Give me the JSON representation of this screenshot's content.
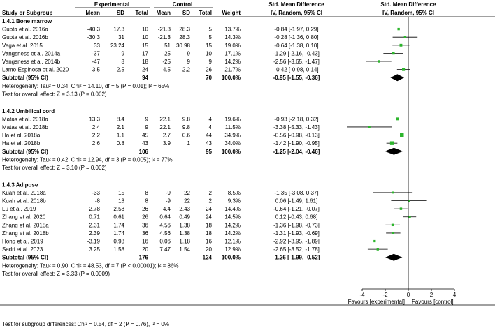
{
  "headers": {
    "study": "Study or Subgroup",
    "experimental": "Experimental",
    "control": "Control",
    "mean": "Mean",
    "sd": "SD",
    "total": "Total",
    "weight": "Weight",
    "smd": "Std. Mean Difference",
    "method": "IV, Random, 95% CI"
  },
  "chart_data": {
    "type": "forest",
    "xlim": [
      -4,
      4
    ],
    "xticks": [
      "-4",
      "-2",
      "0",
      "2",
      "4"
    ],
    "xlabel_left": "Favours [experimental]",
    "xlabel_right": "Favours [control]",
    "subgroups": [
      {
        "title": "1.4.1 Bone marrow",
        "studies": [
          {
            "name": "Gupta et al. 2016a",
            "e_mean": "-40.3",
            "e_sd": "17.3",
            "e_total": "10",
            "c_mean": "-21.3",
            "c_sd": "28.3",
            "c_total": "5",
            "weight": "13.7%",
            "ci_text": "-0.84 [-1.97, 0.29]",
            "est": -0.84,
            "lo": -1.97,
            "hi": 0.29
          },
          {
            "name": "Gupta et al. 2016b",
            "e_mean": "-30.3",
            "e_sd": "31",
            "e_total": "10",
            "c_mean": "-21.3",
            "c_sd": "28.3",
            "c_total": "5",
            "weight": "14.3%",
            "ci_text": "-0.28 [-1.36, 0.80]",
            "est": -0.28,
            "lo": -1.36,
            "hi": 0.8
          },
          {
            "name": "Vega et al. 2015",
            "e_mean": "33",
            "e_sd": "23.24",
            "e_total": "15",
            "c_mean": "51",
            "c_sd": "30.98",
            "c_total": "15",
            "weight": "19.0%",
            "ci_text": "-0.64 [-1.38, 0.10]",
            "est": -0.64,
            "lo": -1.38,
            "hi": 0.1
          },
          {
            "name": "Vangsness et al. 2014a",
            "e_mean": "-37",
            "e_sd": "9",
            "e_total": "17",
            "c_mean": "-25",
            "c_sd": "9",
            "c_total": "10",
            "weight": "17.1%",
            "ci_text": "-1.29 [-2.16, -0.43]",
            "est": -1.29,
            "lo": -2.16,
            "hi": -0.43
          },
          {
            "name": "Vangsness et al. 2014b",
            "e_mean": "-47",
            "e_sd": "8",
            "e_total": "18",
            "c_mean": "-25",
            "c_sd": "9",
            "c_total": "9",
            "weight": "14.2%",
            "ci_text": "-2.56 [-3.65, -1.47]",
            "est": -2.56,
            "lo": -3.65,
            "hi": -1.47
          },
          {
            "name": "Lamo-Espinosa et al. 2020",
            "e_mean": "3.5",
            "e_sd": "2.5",
            "e_total": "24",
            "c_mean": "4.5",
            "c_sd": "2.2",
            "c_total": "26",
            "weight": "21.7%",
            "ci_text": "-0.42 [-0.98, 0.14]",
            "est": -0.42,
            "lo": -0.98,
            "hi": 0.14
          }
        ],
        "subtotal": {
          "label": "Subtotal (95% CI)",
          "e_total": "94",
          "c_total": "70",
          "weight": "100.0%",
          "ci_text": "-0.95 [-1.55, -0.36]",
          "est": -0.95,
          "lo": -1.55,
          "hi": -0.36
        },
        "heterogeneity": "Heterogeneity: Tau² = 0.34; Chi² = 14.10, df = 5 (P = 0.01); I² = 65%",
        "overall": "Test for overall effect: Z = 3.13 (P = 0.002)"
      },
      {
        "title": "1.4.2 Umbilical cord",
        "studies": [
          {
            "name": "Matas et al. 2018a",
            "e_mean": "13.3",
            "e_sd": "8.4",
            "e_total": "9",
            "c_mean": "22.1",
            "c_sd": "9.8",
            "c_total": "4",
            "weight": "19.6%",
            "ci_text": "-0.93 [-2.18, 0.32]",
            "est": -0.93,
            "lo": -2.18,
            "hi": 0.32
          },
          {
            "name": "Matas et al. 2018b",
            "e_mean": "2.4",
            "e_sd": "2.1",
            "e_total": "9",
            "c_mean": "22.1",
            "c_sd": "9.8",
            "c_total": "4",
            "weight": "11.5%",
            "ci_text": "-3.38 [-5.33, -1.43]",
            "est": -3.38,
            "lo": -5.33,
            "hi": -1.43
          },
          {
            "name": "Ha et al. 2018a",
            "e_mean": "2.2",
            "e_sd": "1.1",
            "e_total": "45",
            "c_mean": "2.7",
            "c_sd": "0.6",
            "c_total": "44",
            "weight": "34.9%",
            "ci_text": "-0.56 [-0.98, -0.13]",
            "est": -0.56,
            "lo": -0.98,
            "hi": -0.13
          },
          {
            "name": "Ha et al. 2018b",
            "e_mean": "2.6",
            "e_sd": "0.8",
            "e_total": "43",
            "c_mean": "3.9",
            "c_sd": "1",
            "c_total": "43",
            "weight": "34.0%",
            "ci_text": "-1.42 [-1.90, -0.95]",
            "est": -1.42,
            "lo": -1.9,
            "hi": -0.95
          }
        ],
        "subtotal": {
          "label": "Subtotal (95% CI)",
          "e_total": "106",
          "c_total": "95",
          "weight": "100.0%",
          "ci_text": "-1.25 [-2.04, -0.46]",
          "est": -1.25,
          "lo": -2.04,
          "hi": -0.46
        },
        "heterogeneity": "Heterogeneity: Tau² = 0.42; Chi² = 12.94, df = 3 (P = 0.005); I² = 77%",
        "overall": "Test for overall effect: Z = 3.10 (P = 0.002)"
      },
      {
        "title": "1.4.3 Adipose",
        "studies": [
          {
            "name": "Kuah et al. 2018a",
            "e_mean": "-33",
            "e_sd": "15",
            "e_total": "8",
            "c_mean": "-9",
            "c_sd": "22",
            "c_total": "2",
            "weight": "8.5%",
            "ci_text": "-1.35 [-3.08, 0.37]",
            "est": -1.35,
            "lo": -3.08,
            "hi": 0.37
          },
          {
            "name": "Kuah et al. 2018b",
            "e_mean": "-8",
            "e_sd": "13",
            "e_total": "8",
            "c_mean": "-9",
            "c_sd": "22",
            "c_total": "2",
            "weight": "9.3%",
            "ci_text": "0.06 [-1.49, 1.61]",
            "est": 0.06,
            "lo": -1.49,
            "hi": 1.61
          },
          {
            "name": "Lu et al. 2019",
            "e_mean": "2.78",
            "e_sd": "2.58",
            "e_total": "26",
            "c_mean": "4.4",
            "c_sd": "2.43",
            "c_total": "24",
            "weight": "14.4%",
            "ci_text": "-0.64 [-1.21, -0.07]",
            "est": -0.64,
            "lo": -1.21,
            "hi": -0.07
          },
          {
            "name": "Zhang et al. 2020",
            "e_mean": "0.71",
            "e_sd": "0.61",
            "e_total": "26",
            "c_mean": "0.64",
            "c_sd": "0.49",
            "c_total": "24",
            "weight": "14.5%",
            "ci_text": "0.12 [-0.43, 0.68]",
            "est": 0.12,
            "lo": -0.43,
            "hi": 0.68
          },
          {
            "name": "Zhang et al. 2018a",
            "e_mean": "2.31",
            "e_sd": "1.74",
            "e_total": "36",
            "c_mean": "4.56",
            "c_sd": "1.38",
            "c_total": "18",
            "weight": "14.2%",
            "ci_text": "-1.36 [-1.98, -0.73]",
            "est": -1.36,
            "lo": -1.98,
            "hi": -0.73
          },
          {
            "name": "Zhang et al. 2018b",
            "e_mean": "2.39",
            "e_sd": "1.74",
            "e_total": "36",
            "c_mean": "4.56",
            "c_sd": "1.38",
            "c_total": "18",
            "weight": "14.2%",
            "ci_text": "-1.31 [-1.93, -0.69]",
            "est": -1.31,
            "lo": -1.93,
            "hi": -0.69
          },
          {
            "name": "Hong et al. 2019",
            "e_mean": "-3.19",
            "e_sd": "0.98",
            "e_total": "16",
            "c_mean": "0.06",
            "c_sd": "1.18",
            "c_total": "16",
            "weight": "12.1%",
            "ci_text": "-2.92 [-3.95, -1.89]",
            "est": -2.92,
            "lo": -3.95,
            "hi": -1.89
          },
          {
            "name": "Sadri et al. 2023",
            "e_mean": "3.25",
            "e_sd": "1.58",
            "e_total": "20",
            "c_mean": "7.47",
            "c_sd": "1.54",
            "c_total": "20",
            "weight": "12.9%",
            "ci_text": "-2.65 [-3.52, -1.78]",
            "est": -2.65,
            "lo": -3.52,
            "hi": -1.78
          }
        ],
        "subtotal": {
          "label": "Subtotal (95% CI)",
          "e_total": "176",
          "c_total": "124",
          "weight": "100.0%",
          "ci_text": "-1.26 [-1.99, -0.52]",
          "est": -1.26,
          "lo": -1.99,
          "hi": -0.52
        },
        "heterogeneity": "Heterogeneity: Tau² = 0.90; Chi² = 48.53, df = 7 (P < 0.00001); I² = 86%",
        "overall": "Test for overall effect: Z = 3.33 (P = 0.0009)"
      }
    ],
    "subgroup_test": "Test for subgroup differences: Chi² = 0.54, df = 2 (P = 0.76), I² = 0%",
    "colors": {
      "marker": "#2db52d",
      "diamond": "#000000",
      "line": "#000000"
    }
  }
}
